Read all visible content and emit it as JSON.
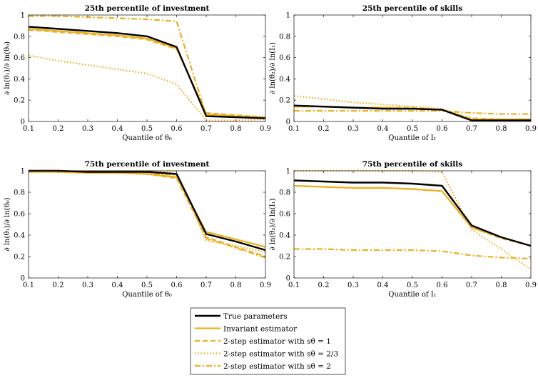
{
  "chart_data": [
    {
      "type": "line",
      "title": "25th percentile of investment",
      "xlabel": "Quantile of θ₀",
      "ylabel": "∂ ln(θ₁)/∂ ln(θ₀)",
      "x": [
        0.1,
        0.2,
        0.3,
        0.4,
        0.5,
        0.6,
        0.7,
        0.8,
        0.9
      ],
      "xlim": [
        0.1,
        0.9
      ],
      "ylim": [
        0,
        1
      ],
      "x_ticks": [
        "0.1",
        "0.2",
        "0.3",
        "0.4",
        "0.5",
        "0.6",
        "0.7",
        "0.8",
        "0.9"
      ],
      "y_ticks": [
        "0",
        "0.2",
        "0.4",
        "0.6",
        "0.8",
        "1"
      ],
      "series": [
        {
          "name": "True parameters",
          "values": [
            0.89,
            0.87,
            0.85,
            0.83,
            0.8,
            0.7,
            0.05,
            0.04,
            0.03
          ]
        },
        {
          "name": "Invariant estimator",
          "values": [
            0.87,
            0.85,
            0.83,
            0.81,
            0.78,
            0.69,
            0.07,
            0.05,
            0.04
          ]
        },
        {
          "name": "2-step estimator with sθ = 1",
          "values": [
            0.86,
            0.84,
            0.82,
            0.8,
            0.77,
            0.68,
            0.08,
            0.06,
            0.04
          ]
        },
        {
          "name": "2-step estimator with sθ = 2/3",
          "values": [
            0.62,
            0.57,
            0.53,
            0.49,
            0.45,
            0.35,
            0.01,
            0.01,
            0.02
          ]
        },
        {
          "name": "2-step estimator with sθ = 2",
          "values": [
            0.99,
            0.99,
            0.98,
            0.97,
            0.96,
            0.94,
            0.06,
            0.05,
            0.04
          ]
        }
      ]
    },
    {
      "type": "line",
      "title": "25th percentile of skills",
      "xlabel": "Quantile of I₁",
      "ylabel": "∂ ln(θ₂)/∂ ln(I₁)",
      "x": [
        0.1,
        0.2,
        0.3,
        0.4,
        0.5,
        0.6,
        0.7,
        0.8,
        0.9
      ],
      "xlim": [
        0.1,
        0.9
      ],
      "ylim": [
        0,
        1
      ],
      "x_ticks": [
        "0.1",
        "0.2",
        "0.3",
        "0.4",
        "0.5",
        "0.6",
        "0.7",
        "0.8",
        "0.9"
      ],
      "y_ticks": [
        "0",
        "0.2",
        "0.4",
        "0.6",
        "0.8",
        "1"
      ],
      "series": [
        {
          "name": "True parameters",
          "values": [
            0.15,
            0.14,
            0.13,
            0.12,
            0.12,
            0.11,
            0.01,
            0.01,
            0.01
          ]
        },
        {
          "name": "Invariant estimator",
          "values": [
            0.14,
            0.14,
            0.13,
            0.13,
            0.12,
            0.11,
            0.02,
            0.02,
            0.02
          ]
        },
        {
          "name": "2-step estimator with sθ = 1",
          "values": [
            0.14,
            0.14,
            0.13,
            0.13,
            0.13,
            0.11,
            0.03,
            0.02,
            0.02
          ]
        },
        {
          "name": "2-step estimator with sθ = 2/3",
          "values": [
            0.24,
            0.21,
            0.18,
            0.16,
            0.14,
            0.12,
            0.02,
            0.01,
            0.01
          ]
        },
        {
          "name": "2-step estimator with sθ = 2",
          "values": [
            0.1,
            0.1,
            0.1,
            0.1,
            0.1,
            0.1,
            0.08,
            0.07,
            0.07
          ]
        }
      ]
    },
    {
      "type": "line",
      "title": "75th percentile of investment",
      "xlabel": "Quantile of θ₀",
      "ylabel": "∂ ln(θ₁)/∂ ln(θ₀)",
      "x": [
        0.1,
        0.2,
        0.3,
        0.4,
        0.5,
        0.6,
        0.7,
        0.8,
        0.9
      ],
      "xlim": [
        0.1,
        0.9
      ],
      "ylim": [
        0,
        1
      ],
      "x_ticks": [
        "0.1",
        "0.2",
        "0.3",
        "0.4",
        "0.5",
        "0.6",
        "0.7",
        "0.8",
        "0.9"
      ],
      "y_ticks": [
        "0",
        "0.2",
        "0.4",
        "0.6",
        "0.8",
        "1"
      ],
      "series": [
        {
          "name": "True parameters",
          "values": [
            1.0,
            1.0,
            0.99,
            0.99,
            0.99,
            0.97,
            0.41,
            0.34,
            0.26
          ]
        },
        {
          "name": "Invariant estimator",
          "values": [
            0.99,
            0.99,
            0.98,
            0.98,
            0.97,
            0.94,
            0.43,
            0.36,
            0.29
          ]
        },
        {
          "name": "2-step estimator with sθ = 1",
          "values": [
            0.99,
            0.99,
            0.98,
            0.98,
            0.97,
            0.93,
            0.38,
            0.29,
            0.2
          ]
        },
        {
          "name": "2-step estimator with sθ = 2/3",
          "values": [
            1.0,
            1.0,
            1.0,
            1.0,
            1.0,
            0.99,
            0.35,
            0.3,
            0.24
          ]
        },
        {
          "name": "2-step estimator with sθ = 2",
          "values": [
            0.99,
            0.99,
            0.99,
            0.99,
            0.98,
            0.96,
            0.37,
            0.28,
            0.19
          ]
        }
      ]
    },
    {
      "type": "line",
      "title": "75th percentile of skills",
      "xlabel": "Quantile of I₁",
      "ylabel": "∂ ln(θ₂)/∂ ln(I₁)",
      "x": [
        0.1,
        0.2,
        0.3,
        0.4,
        0.5,
        0.6,
        0.7,
        0.8,
        0.9
      ],
      "xlim": [
        0.1,
        0.9
      ],
      "ylim": [
        0,
        1
      ],
      "x_ticks": [
        "0.1",
        "0.2",
        "0.3",
        "0.4",
        "0.5",
        "0.6",
        "0.7",
        "0.8",
        "0.9"
      ],
      "y_ticks": [
        "0",
        "0.2",
        "0.4",
        "0.6",
        "0.8",
        "1"
      ],
      "series": [
        {
          "name": "True parameters",
          "values": [
            0.91,
            0.9,
            0.89,
            0.89,
            0.88,
            0.86,
            0.49,
            0.38,
            0.3
          ]
        },
        {
          "name": "Invariant estimator",
          "values": [
            0.86,
            0.85,
            0.84,
            0.84,
            0.83,
            0.81,
            0.47,
            0.38,
            0.3
          ]
        },
        {
          "name": "2-step estimator with sθ = 1",
          "values": [
            0.86,
            0.85,
            0.84,
            0.84,
            0.83,
            0.81,
            0.47,
            0.37,
            0.3
          ]
        },
        {
          "name": "2-step estimator with sθ = 2/3",
          "values": [
            1.0,
            1.0,
            1.0,
            1.0,
            1.0,
            0.99,
            0.45,
            0.27,
            0.08
          ]
        },
        {
          "name": "2-step estimator with sθ = 2",
          "values": [
            0.27,
            0.27,
            0.26,
            0.26,
            0.26,
            0.25,
            0.21,
            0.19,
            0.18
          ]
        }
      ]
    }
  ],
  "legend": {
    "placement": "bottom-center",
    "entries": [
      {
        "label": "True parameters",
        "color": "#000000",
        "style": "solid"
      },
      {
        "label": "Invariant estimator",
        "color": "#EDB120",
        "style": "solid"
      },
      {
        "label": "2-step estimator with sθ = 1",
        "color": "#EDB120",
        "style": "dashed"
      },
      {
        "label": "2-step estimator with sθ = 2/3",
        "color": "#EDB120",
        "style": "dotted"
      },
      {
        "label": "2-step estimator with sθ = 2",
        "color": "#EDB120",
        "style": "dashdot"
      }
    ]
  },
  "colors": {
    "true": "#000000",
    "estimator": "#EDB120"
  }
}
